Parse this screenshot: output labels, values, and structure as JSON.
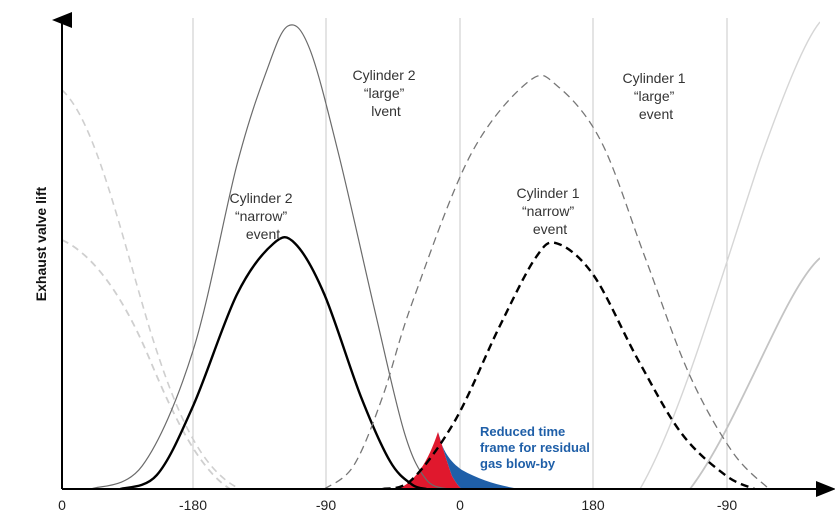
{
  "chart_data": {
    "type": "line",
    "title": "",
    "xlabel": "",
    "ylabel": "Exhaust valve lift",
    "x_tick_labels": [
      "0",
      "-180",
      "-90",
      "0",
      "180",
      "-90"
    ],
    "grid": "vertical",
    "series": [
      {
        "key": "cyl2_large",
        "style": "solid",
        "color": "#6b6b6b",
        "stroke_width": 1.2,
        "points": [
          [
            -220,
            0
          ],
          [
            -185,
            0.05
          ],
          [
            -150,
            0.3
          ],
          [
            -120,
            0.7
          ],
          [
            -100,
            0.9
          ],
          [
            -85,
            1.0
          ],
          [
            -70,
            0.95
          ],
          [
            -50,
            0.72
          ],
          [
            -25,
            0.38
          ],
          [
            -5,
            0.12
          ],
          [
            10,
            0.02
          ],
          [
            25,
            0
          ]
        ]
      },
      {
        "key": "cyl2_narrow",
        "style": "solid",
        "color": "#000000",
        "stroke_width": 2.4,
        "points": [
          [
            -200,
            0
          ],
          [
            -175,
            0.03
          ],
          [
            -150,
            0.18
          ],
          [
            -120,
            0.42
          ],
          [
            -95,
            0.53
          ],
          [
            -80,
            0.53
          ],
          [
            -60,
            0.42
          ],
          [
            -35,
            0.2
          ],
          [
            -15,
            0.06
          ],
          [
            0,
            0.01
          ],
          [
            10,
            0
          ]
        ]
      },
      {
        "key": "cyl1_large",
        "style": "dashed",
        "color": "#777777",
        "stroke_width": 1.3,
        "points": [
          [
            -60,
            0
          ],
          [
            -40,
            0.05
          ],
          [
            -20,
            0.2
          ],
          [
            0,
            0.4
          ],
          [
            40,
            0.72
          ],
          [
            80,
            0.88
          ],
          [
            100,
            0.87
          ],
          [
            130,
            0.75
          ],
          [
            160,
            0.5
          ],
          [
            190,
            0.25
          ],
          [
            220,
            0.08
          ],
          [
            245,
            0
          ]
        ]
      },
      {
        "key": "cyl1_narrow",
        "style": "dashed",
        "color": "#000000",
        "stroke_width": 2.4,
        "points": [
          [
            -20,
            0
          ],
          [
            0,
            0.02
          ],
          [
            30,
            0.15
          ],
          [
            60,
            0.35
          ],
          [
            85,
            0.5
          ],
          [
            100,
            0.53
          ],
          [
            125,
            0.46
          ],
          [
            155,
            0.28
          ],
          [
            185,
            0.12
          ],
          [
            215,
            0.03
          ],
          [
            235,
            0
          ]
        ]
      }
    ],
    "annotations": [
      {
        "key": "cyl2_large_text",
        "lines": [
          "Cylinder 2",
          "“large”",
          "lvent"
        ]
      },
      {
        "key": "cyl2_narrow_text",
        "lines": [
          "Cylinder 2",
          "“narrow”",
          "event"
        ]
      },
      {
        "key": "cyl1_large_text",
        "lines": [
          "Cylinder 1",
          "“large”",
          "event"
        ]
      },
      {
        "key": "cyl1_narrow_text",
        "lines": [
          "Cylinder 1",
          "“narrow”",
          "event"
        ]
      },
      {
        "key": "blowby_text",
        "lines": [
          "Reduced time",
          "frame for residual",
          "gas blow-by"
        ],
        "color": "#1f5fa8"
      }
    ],
    "highlight_regions": [
      {
        "key": "red_overlap",
        "color": "#e0182d"
      },
      {
        "key": "blue_blowby",
        "color": "#1f5fa8"
      }
    ]
  }
}
